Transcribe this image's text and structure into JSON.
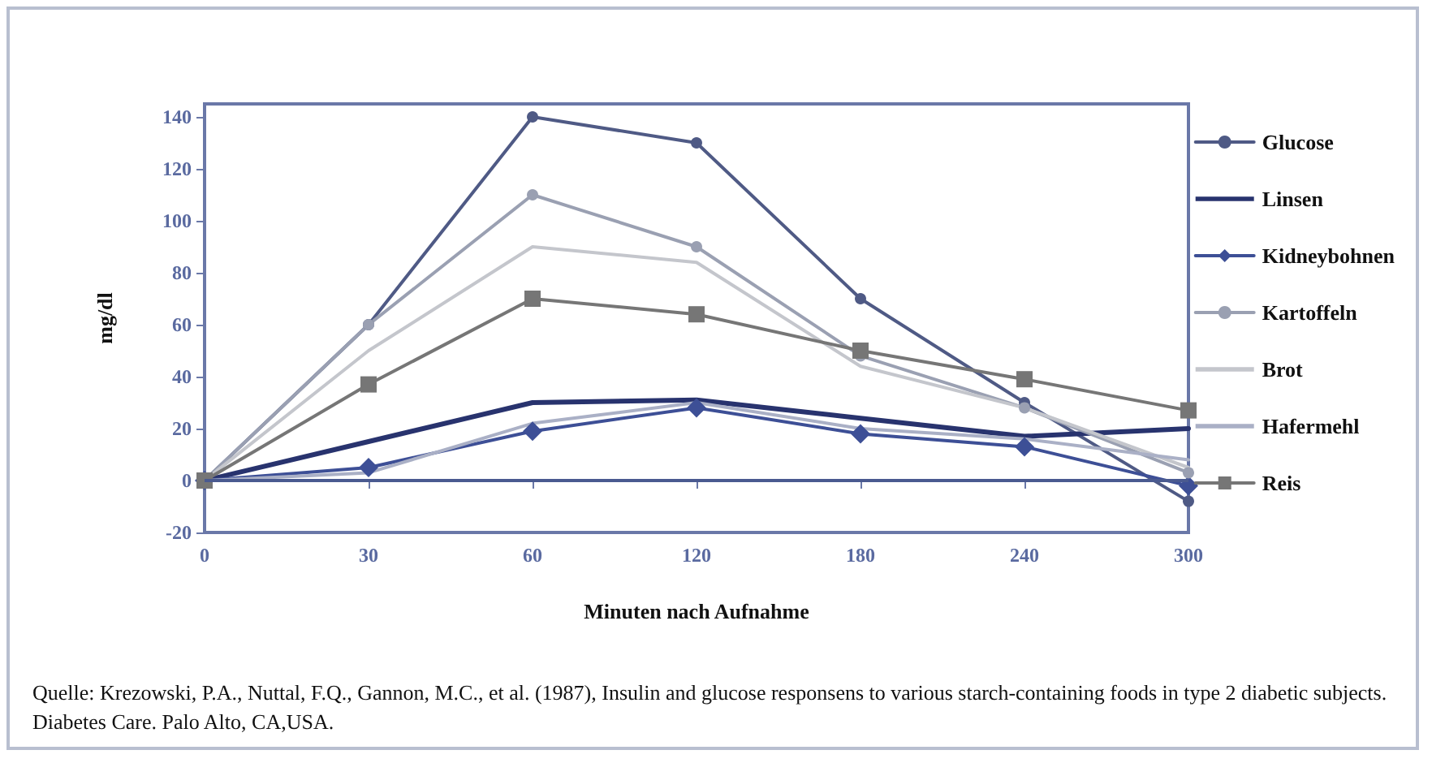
{
  "chart_data": {
    "type": "line",
    "xlabel": "Minuten nach Aufnahme",
    "ylabel": "mg/dl",
    "categories": [
      "0",
      "30",
      "60",
      "120",
      "180",
      "240",
      "300"
    ],
    "ylim": [
      -20,
      145
    ],
    "yticks": [
      -20,
      0,
      20,
      40,
      60,
      80,
      100,
      120,
      140
    ],
    "grid": false,
    "legend": "right",
    "ref_lines": [
      {
        "axis": "y",
        "value": 0,
        "color": "#4a5a90"
      }
    ],
    "series": [
      {
        "name": "Glucose",
        "color": "#4f5a85",
        "marker": "circle",
        "values": [
          0,
          60,
          140,
          130,
          70,
          30,
          -8
        ]
      },
      {
        "name": "Linsen",
        "color": "#28336e",
        "marker": "none",
        "values": [
          0,
          15,
          30,
          31,
          24,
          17,
          20
        ]
      },
      {
        "name": "Kidneybohnen",
        "color": "#3d4f96",
        "marker": "diamond",
        "values": [
          0,
          5,
          19,
          28,
          18,
          13,
          -2
        ]
      },
      {
        "name": "Kartoffeln",
        "color": "#9aa0b2",
        "marker": "circle",
        "values": [
          0,
          60,
          110,
          90,
          48,
          28,
          3
        ]
      },
      {
        "name": "Brot",
        "color": "#c4c6cc",
        "marker": "none",
        "values": [
          0,
          50,
          90,
          84,
          44,
          28,
          5
        ]
      },
      {
        "name": "Hafermehl",
        "color": "#aab0c6",
        "marker": "none",
        "values": [
          0,
          3,
          22,
          30,
          20,
          16,
          8
        ]
      },
      {
        "name": "Reis",
        "color": "#767676",
        "marker": "square",
        "values": [
          0,
          37,
          70,
          64,
          50,
          39,
          27
        ]
      }
    ],
    "annotations": [
      "Quelle: Krezowski, P.A., Nuttal, F.Q., Gannon, M.C., et al. (1987), Insulin and glucose responsens to various starch-containing foods in type 2 diabetic subjects. Diabetes Care. Palo Alto, CA,USA."
    ]
  }
}
